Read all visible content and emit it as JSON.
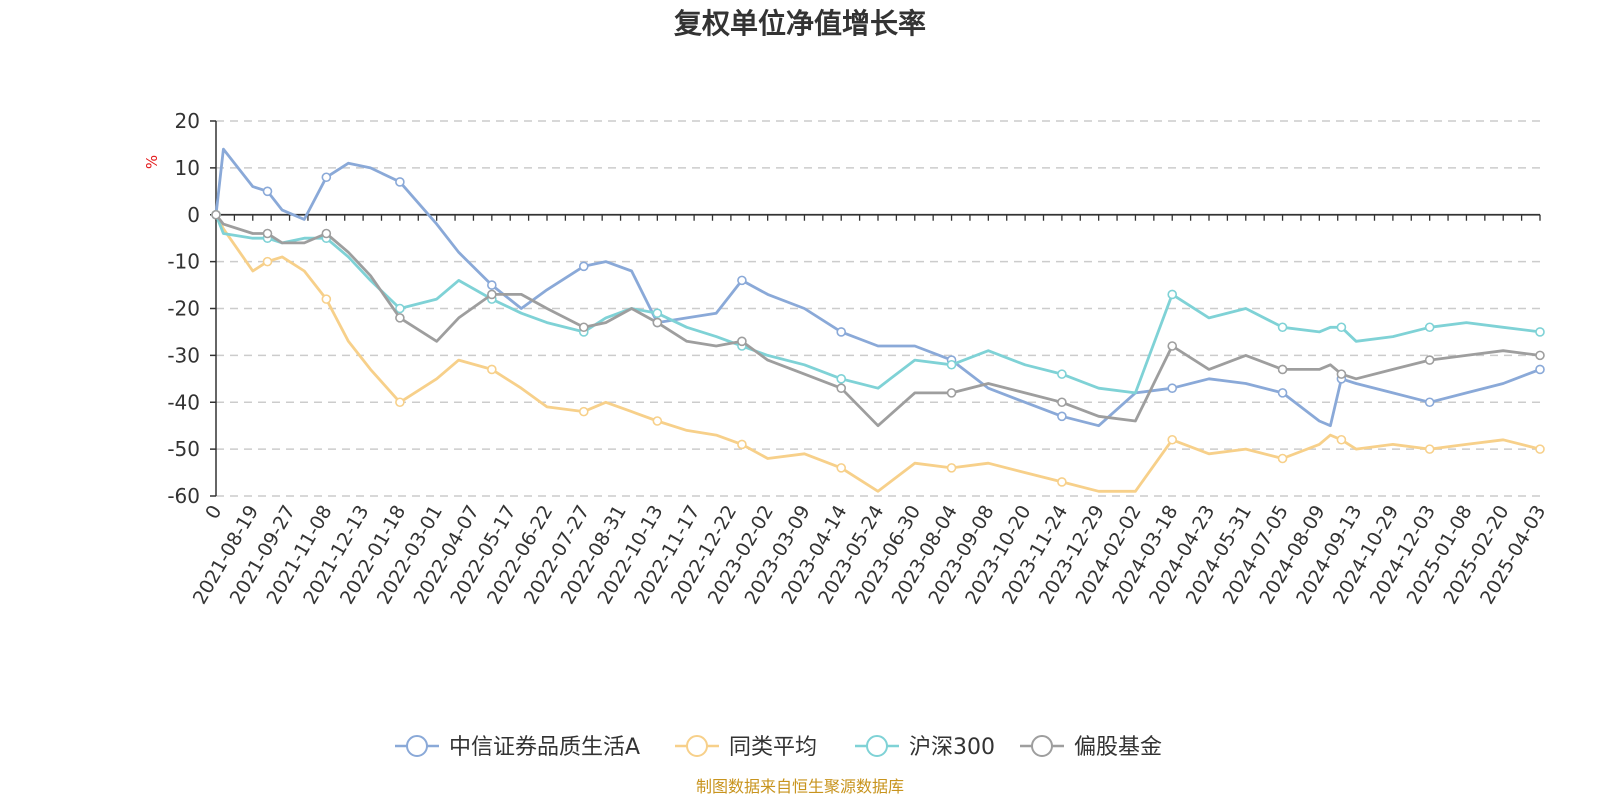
{
  "title": "复权单位净值增长率",
  "source": "制图数据来自恒生聚源数据库",
  "colors": {
    "title": "#333333",
    "axis": "#333333",
    "grid": "#cccccc",
    "unit": "#e31a1c",
    "source": "#c8941e"
  },
  "chart_data": {
    "type": "line",
    "title": "复权单位净值增长率",
    "ylabel": "%",
    "xlabel": "",
    "ylim": [
      -60,
      20
    ],
    "yticks": [
      20,
      10,
      0,
      -10,
      -20,
      -30,
      -40,
      -50,
      -60
    ],
    "grid": "horizontal-dashed",
    "legend_position": "bottom-center",
    "x_ticklabels": [
      "0",
      "2021-08-19",
      "2021-09-27",
      "2021-11-08",
      "2021-12-13",
      "2022-01-18",
      "2022-03-01",
      "2022-04-07",
      "2022-05-17",
      "2022-06-22",
      "2022-07-27",
      "2022-08-31",
      "2022-10-13",
      "2022-11-17",
      "2022-12-22",
      "2023-02-02",
      "2023-03-09",
      "2023-04-14",
      "2023-05-24",
      "2023-06-30",
      "2023-08-04",
      "2023-09-08",
      "2023-10-20",
      "2023-11-24",
      "2023-12-29",
      "2024-02-02",
      "2024-03-18",
      "2024-04-23",
      "2024-05-31",
      "2024-07-05",
      "2024-08-09",
      "2024-09-13",
      "2024-10-29",
      "2024-12-03",
      "2025-01-08",
      "2025-02-20",
      "2025-04-03"
    ],
    "x_points": [
      0,
      0.2,
      1,
      1.4,
      1.8,
      2.4,
      3,
      3.6,
      4.2,
      5,
      6,
      6.6,
      7.5,
      8.3,
      9,
      10,
      10.6,
      11.3,
      12,
      12.8,
      13.6,
      14.3,
      15,
      16,
      17,
      18,
      19,
      20,
      21,
      22,
      23,
      24,
      25,
      26,
      27,
      28,
      29,
      30,
      30.3,
      30.6,
      31,
      32,
      33,
      34,
      35,
      36
    ],
    "series": [
      {
        "name": "中信证券品质生活A",
        "color": "#8aa9d8",
        "values": [
          0,
          14,
          6,
          5,
          1,
          -1,
          8,
          11,
          10,
          7,
          -2,
          -8,
          -15,
          -20,
          -16,
          -11,
          -10,
          -12,
          -23,
          -22,
          -21,
          -14,
          -17,
          -20,
          -25,
          -28,
          -28,
          -31,
          -37,
          -40,
          -43,
          -45,
          -38,
          -37,
          -35,
          -36,
          -38,
          -44,
          -45,
          -35,
          -36,
          -38,
          -40,
          -38,
          -36,
          -33
        ]
      },
      {
        "name": "同类平均",
        "color": "#f7d08a",
        "values": [
          0,
          -3,
          -12,
          -10,
          -9,
          -12,
          -18,
          -27,
          -33,
          -40,
          -35,
          -31,
          -33,
          -37,
          -41,
          -42,
          -40,
          -42,
          -44,
          -46,
          -47,
          -49,
          -52,
          -51,
          -54,
          -59,
          -53,
          -54,
          -53,
          -55,
          -57,
          -59,
          -59,
          -48,
          -51,
          -50,
          -52,
          -49,
          -47,
          -48,
          -50,
          -49,
          -50,
          -49,
          -48,
          -50
        ]
      },
      {
        "name": "沪深300",
        "color": "#7fd2d6",
        "values": [
          0,
          -4,
          -5,
          -5,
          -6,
          -5,
          -5,
          -9,
          -14,
          -20,
          -18,
          -14,
          -18,
          -21,
          -23,
          -25,
          -22,
          -20,
          -21,
          -24,
          -26,
          -28,
          -30,
          -32,
          -35,
          -37,
          -31,
          -32,
          -29,
          -32,
          -34,
          -37,
          -38,
          -17,
          -22,
          -20,
          -24,
          -25,
          -24,
          -24,
          -27,
          -26,
          -24,
          -23,
          -24,
          -25
        ]
      },
      {
        "name": "偏股基金",
        "color": "#9e9e9e",
        "values": [
          0,
          -2,
          -4,
          -4,
          -6,
          -6,
          -4,
          -8,
          -13,
          -22,
          -27,
          -22,
          -17,
          -17,
          -20,
          -24,
          -23,
          -20,
          -23,
          -27,
          -28,
          -27,
          -31,
          -34,
          -37,
          -45,
          -38,
          -38,
          -36,
          -38,
          -40,
          -43,
          -44,
          -28,
          -33,
          -30,
          -33,
          -33,
          -32,
          -34,
          -35,
          -33,
          -31,
          -30,
          -29,
          -30
        ]
      }
    ]
  }
}
